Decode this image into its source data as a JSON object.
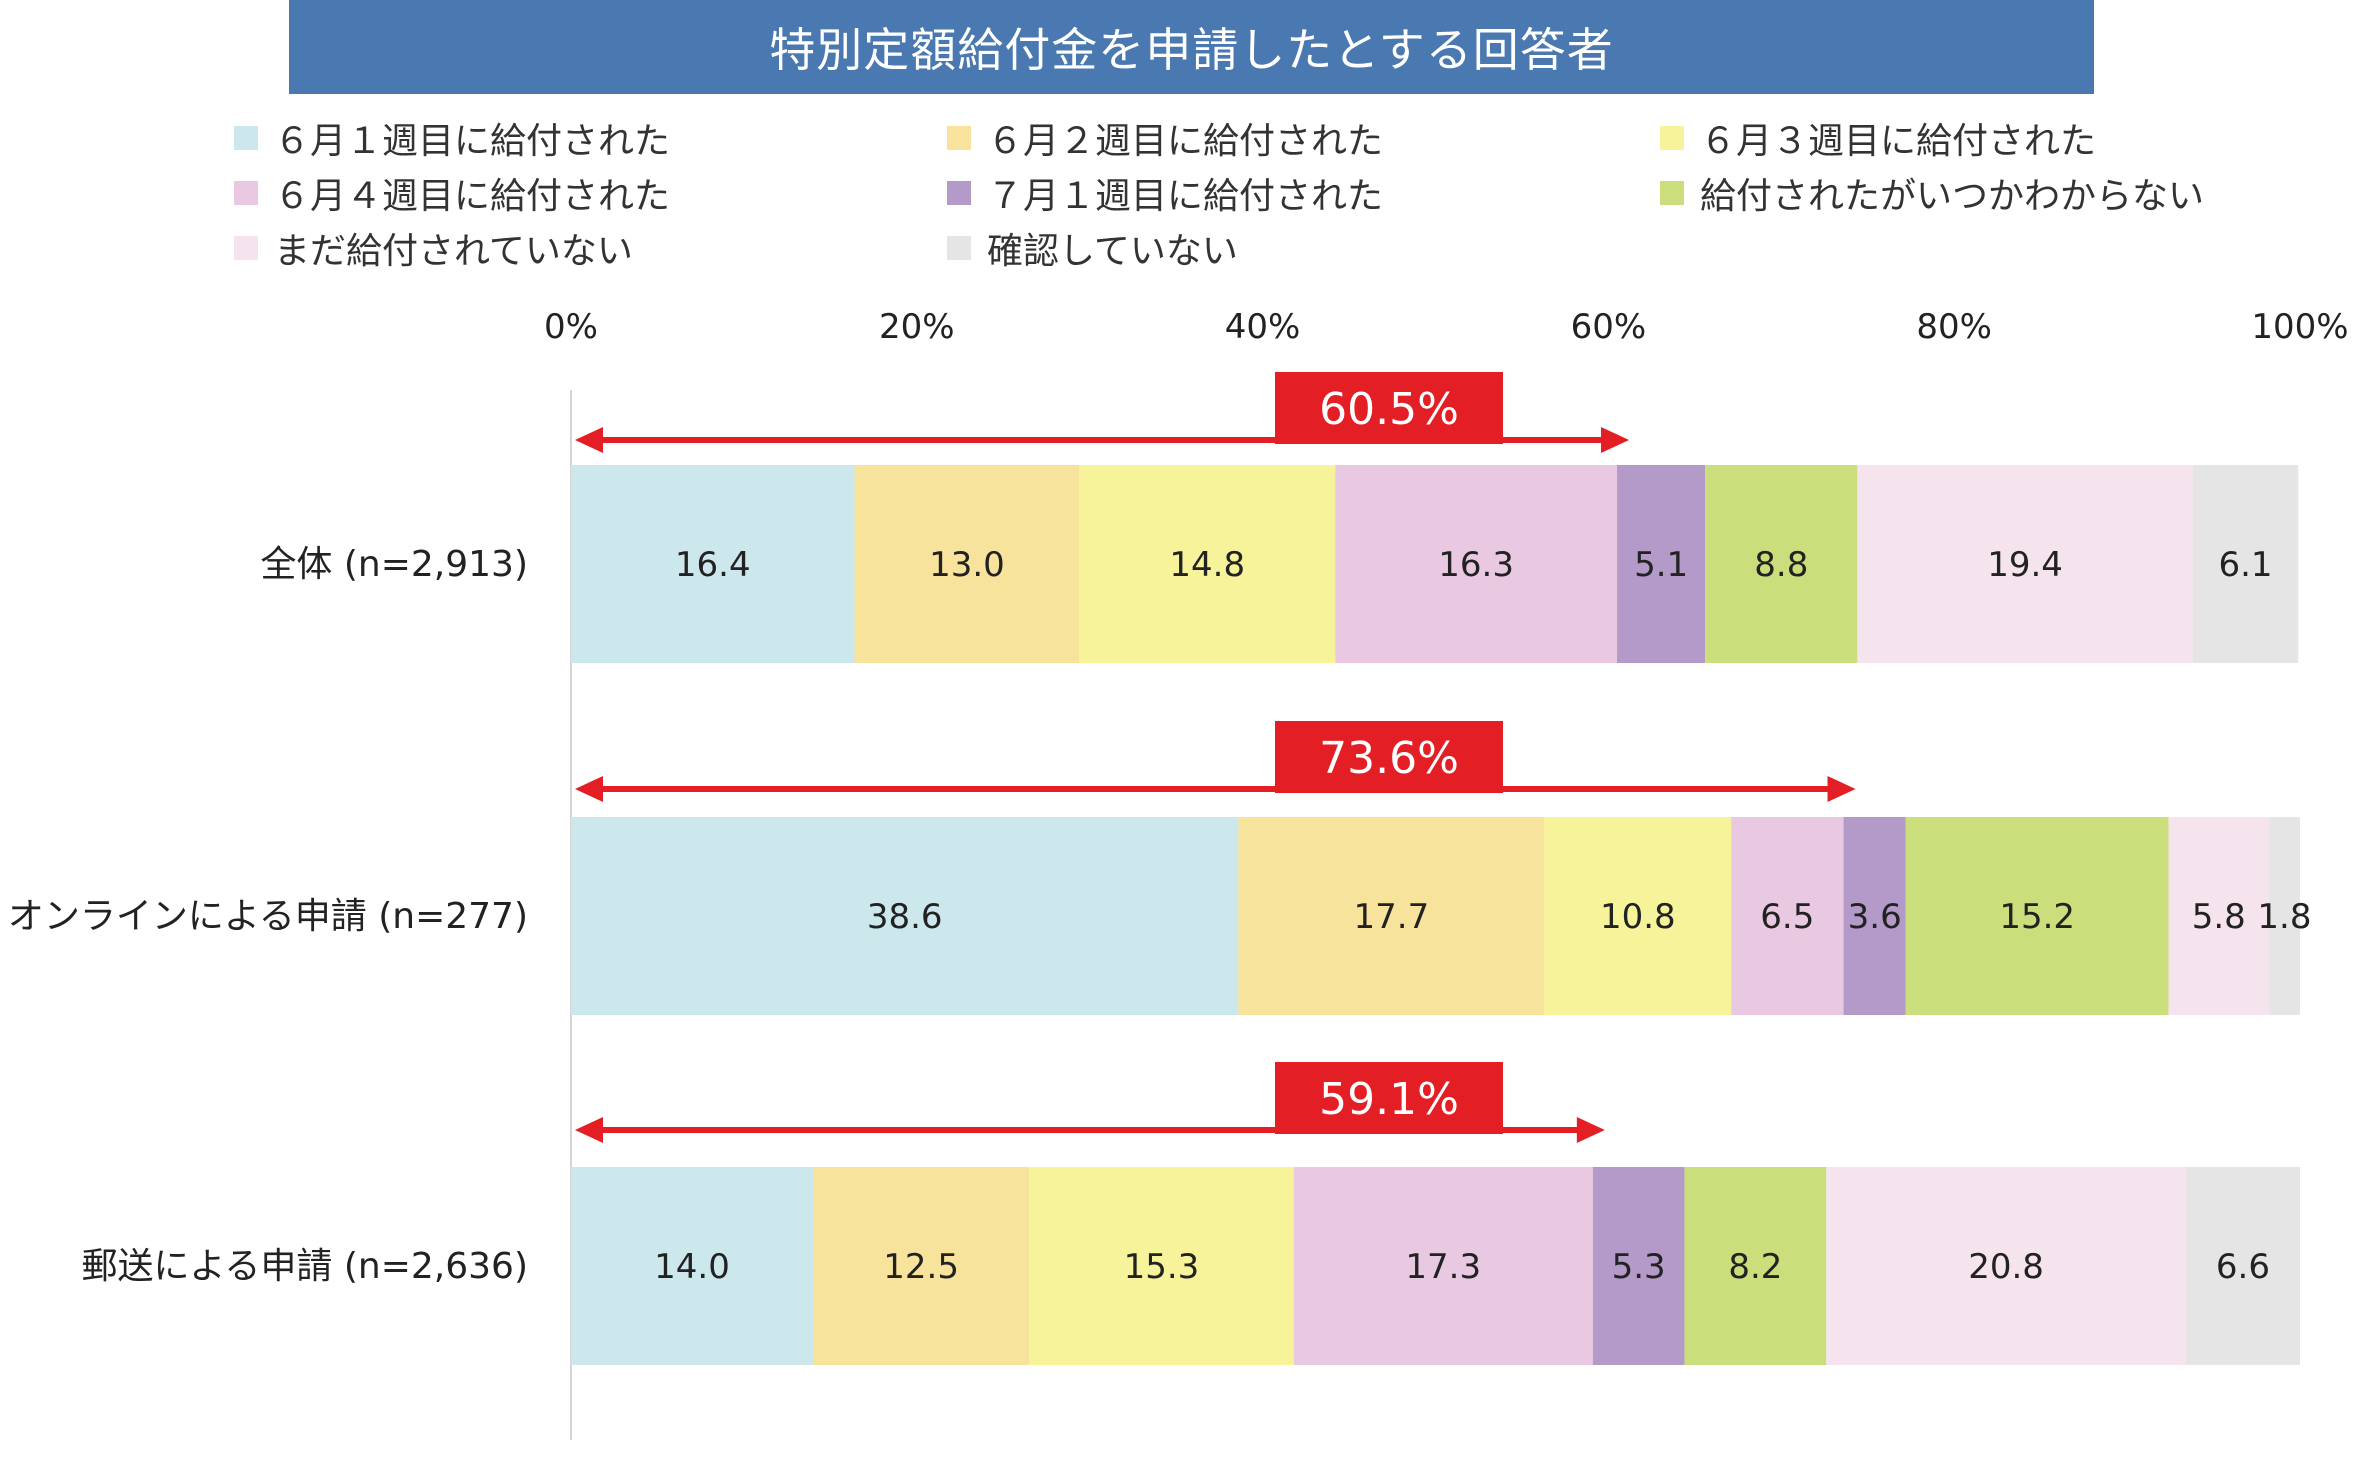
{
  "title": "特別定額給付金を申請したとする回答者",
  "chart_data": {
    "type": "bar",
    "orientation": "horizontal",
    "stacked": true,
    "percent_axis": true,
    "xlim": [
      0,
      100
    ],
    "x_ticks": [
      "0%",
      "20%",
      "40%",
      "60%",
      "80%",
      "100%"
    ],
    "legend_position": "top",
    "categories": [
      "全体 (n=2,913)",
      "オンラインによる申請 (n=277)",
      "郵送による申請 (n=2,636)"
    ],
    "series": [
      {
        "name": "６月１週目に給付された",
        "color": "#cde8ed",
        "values": [
          16.4,
          38.6,
          14.0
        ],
        "labels": [
          "16.4",
          "38.6",
          "14.0"
        ]
      },
      {
        "name": "６月２週目に給付された",
        "color": "#f8e39c",
        "values": [
          13.0,
          17.7,
          12.5
        ],
        "labels": [
          "13.0",
          "17.7",
          "12.5"
        ]
      },
      {
        "name": "６月３週目に給付された",
        "color": "#f6f39b",
        "values": [
          14.8,
          10.8,
          15.3
        ],
        "labels": [
          "14.8",
          "10.8",
          "15.3"
        ]
      },
      {
        "name": "６月４週目に給付された",
        "color": "#e9c9e2",
        "values": [
          16.3,
          6.5,
          17.3
        ],
        "labels": [
          "16.3",
          "6.5",
          "17.3"
        ]
      },
      {
        "name": "７月１週目に給付された",
        "color": "#b39ac9",
        "values": [
          5.1,
          3.6,
          5.3
        ],
        "labels": [
          "5.1",
          "3.6",
          "5.3"
        ]
      },
      {
        "name": "給付されたがいつかわからない",
        "color": "#cade7c",
        "values": [
          8.8,
          15.2,
          8.2
        ],
        "labels": [
          "8.8",
          "15.2",
          "8.2"
        ]
      },
      {
        "name": "まだ給付されていない",
        "color": "#f5e3ee",
        "values": [
          19.4,
          5.8,
          20.8
        ],
        "labels": [
          "19.4",
          "5.8",
          "20.8"
        ]
      },
      {
        "name": "確認していない",
        "color": "#e5e5e5",
        "values": [
          6.1,
          1.8,
          6.6
        ],
        "labels": [
          "6.1",
          "1.8",
          "6.6"
        ]
      }
    ],
    "annotations": [
      {
        "category_index": 0,
        "label": "60.5%",
        "value": 60.5
      },
      {
        "category_index": 1,
        "label": "73.6%",
        "value": 73.6
      },
      {
        "category_index": 2,
        "label": "59.1%",
        "value": 59.1
      }
    ],
    "annotation_color": "#e31e24"
  }
}
